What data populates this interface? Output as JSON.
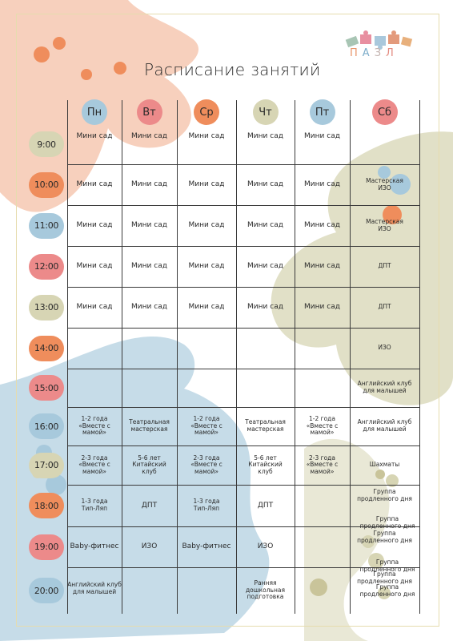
{
  "logo": {
    "letters": [
      "П",
      "А",
      "З",
      "Л"
    ]
  },
  "title": "Расписание занятий",
  "colors": {
    "peach": "#f6c8b2",
    "orange": "#ef8d5c",
    "blue": "#a7c9dc",
    "olive": "#d7d5b4",
    "pink": "#ec8a8a",
    "frame": "#e6dcae"
  },
  "days": [
    "Пн",
    "Вт",
    "Ср",
    "Чт",
    "Пт",
    "Сб"
  ],
  "times": [
    "9:00",
    "10:00",
    "11:00",
    "12:00",
    "13:00",
    "14:00",
    "15:00",
    "16:00",
    "17:00",
    "18:00",
    "19:00",
    "20:00"
  ],
  "rows": [
    [
      "Мини сад",
      "Мини сад",
      "Мини сад",
      "Мини сад",
      "Мини сад",
      ""
    ],
    [
      "Мини сад",
      "Мини сад",
      "Мини сад",
      "Мини сад",
      "Мини сад",
      "Мастерская\nИЗО"
    ],
    [
      "Мини сад",
      "Мини сад",
      "Мини сад",
      "Мини сад",
      "Мини сад",
      "Мастерская\nИЗО"
    ],
    [
      "Мини сад",
      "Мини сад",
      "Мини сад",
      "Мини сад",
      "Мини сад",
      "ДПТ"
    ],
    [
      "Мини сад",
      "Мини сад",
      "Мини сад",
      "Мини сад",
      "Мини сад",
      "ДПТ"
    ],
    [
      "",
      "",
      "",
      "",
      "",
      "ИЗО"
    ],
    [
      "",
      "",
      "",
      "",
      "",
      "Английский клуб\nдля малышей"
    ],
    [
      "1-2 года\n«Вместе с\nмамой»",
      "Театральная\nмастерская",
      "1-2 года\n«Вместе с\nмамой»",
      "Театральная\nмастерская",
      "1-2 года\n«Вместе с\nмамой»",
      "Английский клуб\nдля малышей"
    ],
    [
      "2-3 года\n«Вместе с\nмамой»",
      "5-6 лет\nКитайский\nклуб",
      "2-3 года\n«Вместе с\nмамой»",
      "5-6 лет\nКитайский\nклуб",
      "2-3 года\n«Вместе с\nмамой»",
      "Шахматы"
    ],
    [
      "1-3 года\nТип-Ляп",
      "ДПТ",
      "1-3 года\nТип-Ляп",
      "ДПТ",
      "",
      "Группа\nпродленного дня"
    ],
    [
      "Baby-фитнес",
      "ИЗО",
      "Baby-фитнес",
      "ИЗО",
      "",
      "Группа\nпродленного дня"
    ],
    [
      "Английский клуб\nдля малышей",
      "",
      "",
      "Ранняя дошкольная\nподготовка",
      "",
      "Группа\nпродленного дня"
    ]
  ],
  "saturday_extra": [
    "Группа\nпродленного дня",
    "Группа\nпродленного дня",
    "Группа\nпродленного дня"
  ]
}
